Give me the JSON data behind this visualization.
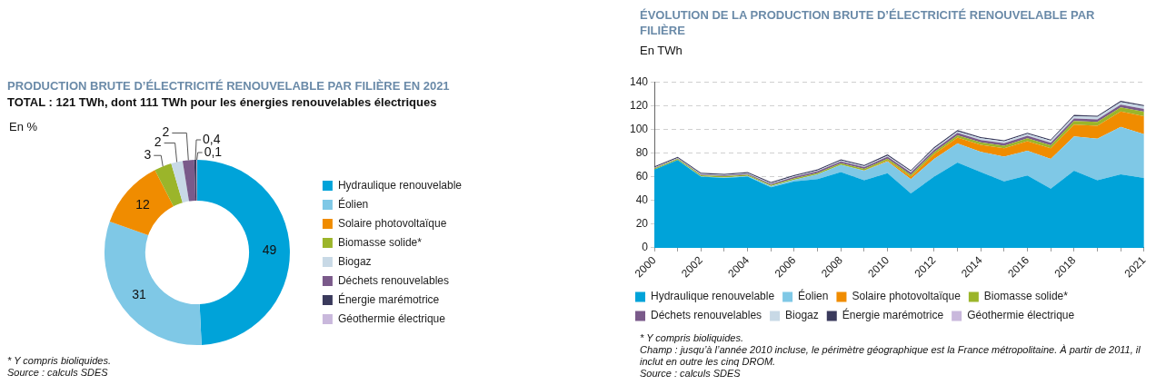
{
  "chart_data": [
    {
      "type": "donut",
      "title": "PRODUCTION BRUTE D’ÉLECTRICITÉ RENOUVELABLE PAR FILIÈRE EN 2021",
      "subtitle": "TOTAL : 121 TWh, dont 111 TWh pour les énergies renouvelables électriques",
      "categories": [
        "Hydraulique renouvelable",
        "Éolien",
        "Solaire photovoltaïque",
        "Biomasse solide*",
        "Biogaz",
        "Déchets renouvelables",
        "Énergie marémotrice",
        "Géothermie électrique"
      ],
      "values": [
        49,
        31,
        12,
        3,
        2,
        2,
        0.4,
        0.1
      ],
      "colors": [
        "#00a3d9",
        "#7fc8e6",
        "#f08c00",
        "#9bb52a",
        "#c8d9e6",
        "#7a5a8a",
        "#3a3a5c",
        "#c9b8dc"
      ],
      "value_labels": [
        "49",
        "31",
        "12",
        "3",
        "2",
        "2",
        "0,4",
        "0,1"
      ],
      "legend": "right",
      "annotations": [
        "En %",
        "* Y compris bioliquides.",
        "Source : calculs SDES"
      ]
    },
    {
      "type": "area",
      "title": "ÉVOLUTION DE LA PRODUCTION BRUTE D’ÉLECTRICITÉ RENOUVELABLE PAR FILIÈRE",
      "ylabel": "En TWh",
      "categories": [
        "2000",
        null,
        "2002",
        null,
        "2004",
        null,
        "2006",
        null,
        "2008",
        null,
        "2010",
        null,
        "2012",
        null,
        "2014",
        null,
        "2016",
        null,
        "2018",
        null,
        null,
        "2021"
      ],
      "stacked": true,
      "ylim": [
        0,
        140
      ],
      "yticks": [
        0,
        20,
        40,
        60,
        80,
        100,
        120,
        140
      ],
      "grid": "y",
      "legend": "bottom",
      "series": [
        {
          "name": "Hydraulique renouvelable",
          "color": "#00a3d9",
          "values": [
            66,
            74,
            60,
            59,
            60,
            51,
            56,
            58,
            64,
            57,
            63,
            46,
            60,
            72,
            64,
            56,
            61,
            50,
            65,
            57,
            62,
            59
          ]
        },
        {
          "name": "Éolien",
          "color": "#7fc8e6",
          "values": [
            0,
            0.1,
            0.3,
            0.4,
            0.6,
            1,
            1.5,
            4,
            6,
            8,
            10,
            12,
            15,
            16,
            17,
            21,
            21,
            25,
            29,
            35,
            40,
            37
          ]
        },
        {
          "name": "Solaire photovoltaïque",
          "color": "#f08c00",
          "values": [
            0,
            0,
            0,
            0,
            0,
            0,
            0,
            0,
            0,
            0.2,
            0.6,
            2,
            4,
            5,
            6,
            7,
            8,
            9,
            10,
            11,
            13,
            15
          ]
        },
        {
          "name": "Biomasse solide*",
          "color": "#9bb52a",
          "values": [
            1,
            1,
            1,
            1,
            1,
            1,
            1,
            1.2,
            1.3,
            1.4,
            1.6,
            1.7,
            1.8,
            2,
            2,
            2.2,
            2.4,
            2.5,
            3,
            3.2,
            3.5,
            3.8
          ]
        },
        {
          "name": "Déchets renouvelables",
          "color": "#7a5a8a",
          "values": [
            0.4,
            0.4,
            0.6,
            0.6,
            0.8,
            1,
            1.4,
            1.5,
            1.6,
            1.6,
            1.8,
            1.8,
            1.9,
            2,
            2,
            2,
            2.1,
            2.1,
            2.2,
            2.2,
            2.3,
            2.3
          ]
        },
        {
          "name": "Biogaz",
          "color": "#c8d9e6",
          "values": [
            0.3,
            0.3,
            0.4,
            0.4,
            0.5,
            0.5,
            0.6,
            0.6,
            0.7,
            0.7,
            0.8,
            1,
            1.2,
            1.3,
            1.4,
            1.5,
            1.6,
            1.7,
            1.9,
            2,
            2.2,
            2.4
          ]
        },
        {
          "name": "Énergie marémotrice",
          "color": "#3a3a5c",
          "values": [
            1,
            1,
            1,
            1,
            1,
            1,
            1,
            1,
            1,
            1,
            1,
            1,
            1,
            1,
            1,
            1,
            1,
            1,
            1,
            1,
            1,
            1
          ]
        },
        {
          "name": "Géothermie électrique",
          "color": "#c9b8dc",
          "values": [
            null,
            null,
            null,
            null,
            null,
            null,
            null,
            null,
            null,
            null,
            null,
            null,
            null,
            null,
            null,
            null,
            null,
            null,
            null,
            null,
            null,
            null
          ]
        }
      ],
      "annotations": [
        "* Y compris bioliquides.",
        "Champ : jusqu’à l’année 2010 incluse, le périmètre géographique est la France métropolitaine. À partir de 2011, il inclut en outre les cinq DROM.",
        "Source : calculs SDES"
      ]
    }
  ]
}
